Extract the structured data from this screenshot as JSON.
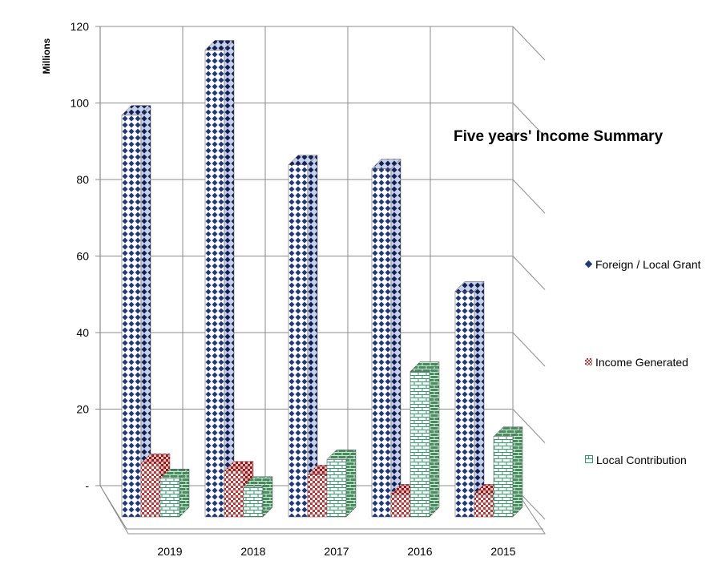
{
  "chart_data": {
    "type": "bar",
    "subtype": "3d-clustered-column",
    "title": "Five years' Income Summary",
    "ylabel": "Millions",
    "xlabel": "",
    "categories": [
      "2019",
      "2018",
      "2017",
      "2016",
      "2015"
    ],
    "ylim": [
      0,
      120
    ],
    "yticks": [
      0,
      20,
      40,
      60,
      80,
      100,
      120
    ],
    "ytick_labels": [
      "-",
      "20",
      "40",
      "60",
      "80",
      "100",
      "120"
    ],
    "grid": true,
    "legend_position": "right",
    "series": [
      {
        "name": "Foreign / Local Grant",
        "color": "#1F3A7A",
        "pattern": "diamonds",
        "values": [
          97,
          114,
          84,
          83,
          51
        ]
      },
      {
        "name": "Income Generated",
        "color": "#D03030",
        "pattern": "checker",
        "values": [
          6,
          4,
          3,
          -2,
          -2
        ]
      },
      {
        "name": "Local Contribution",
        "color": "#2E9C68",
        "pattern": "bricks",
        "values": [
          2,
          0,
          7,
          30,
          13
        ]
      }
    ]
  }
}
